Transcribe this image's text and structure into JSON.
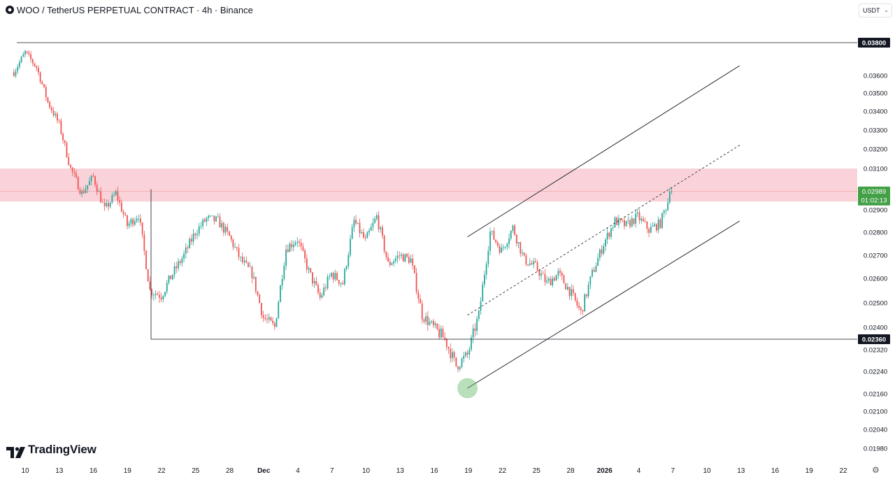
{
  "header": {
    "title": "WOO / TetherUS PERPETUAL CONTRACT · 4h · Binance",
    "currency": "USDT"
  },
  "branding": {
    "name": "TradingView"
  },
  "colors": {
    "up": "#26a69a",
    "down": "#ef5350",
    "zone": "#f8c8cf",
    "price_label": "#43a047"
  },
  "chart_data": {
    "type": "candlestick",
    "title": "WOO / TetherUS PERPETUAL CONTRACT · 4h · Binance",
    "y_ticks": [
      "0.03600",
      "0.03500",
      "0.03400",
      "0.03300",
      "0.03200",
      "0.03100",
      "0.02900",
      "0.02800",
      "0.02700",
      "0.02600",
      "0.02500",
      "0.02400",
      "0.02320",
      "0.02240",
      "0.02160",
      "0.02100",
      "0.02040",
      "0.01980"
    ],
    "x_ticks": [
      "10",
      "13",
      "16",
      "19",
      "22",
      "25",
      "28",
      "Dec",
      "4",
      "7",
      "10",
      "13",
      "16",
      "19",
      "22",
      "25",
      "28",
      "2026",
      "4",
      "7",
      "10",
      "13",
      "16",
      "19",
      "22"
    ],
    "bold_x_ticks": [
      "Dec",
      "2026"
    ],
    "horizontal_levels": [
      {
        "label": "0.03800",
        "value": 0.038
      },
      {
        "label": "0.02360",
        "value": 0.0236
      }
    ],
    "resistance_zone": {
      "from": 0.0294,
      "to": 0.031
    },
    "current_price": {
      "label": "0.02989",
      "countdown": "01:02:13",
      "value": 0.02989
    },
    "channel": {
      "start_date": "Dec 19",
      "end_date": "Jan 12",
      "lower": [
        0.0218,
        0.0285
      ],
      "upper": [
        0.0278,
        0.0366
      ],
      "middle": [
        0.0245,
        0.0322
      ]
    },
    "marked_low": {
      "date": "Dec 19",
      "value": 0.0218
    },
    "close_path": [
      {
        "date": "Nov 9",
        "close": 0.0362
      },
      {
        "date": "Nov 10",
        "close": 0.0374
      },
      {
        "date": "Nov 11",
        "close": 0.0365
      },
      {
        "date": "Nov 12",
        "close": 0.0345
      },
      {
        "date": "Nov 13",
        "close": 0.0333
      },
      {
        "date": "Nov 14",
        "close": 0.031
      },
      {
        "date": "Nov 15",
        "close": 0.0298
      },
      {
        "date": "Nov 16",
        "close": 0.0306
      },
      {
        "date": "Nov 17",
        "close": 0.029
      },
      {
        "date": "Nov 18",
        "close": 0.0298
      },
      {
        "date": "Nov 19",
        "close": 0.0283
      },
      {
        "date": "Nov 20",
        "close": 0.0288
      },
      {
        "date": "Nov 21",
        "close": 0.0255
      },
      {
        "date": "Nov 22",
        "close": 0.0253
      },
      {
        "date": "Nov 23",
        "close": 0.0262
      },
      {
        "date": "Nov 24",
        "close": 0.027
      },
      {
        "date": "Nov 25",
        "close": 0.028
      },
      {
        "date": "Nov 26",
        "close": 0.0286
      },
      {
        "date": "Nov 27",
        "close": 0.0285
      },
      {
        "date": "Nov 28",
        "close": 0.0278
      },
      {
        "date": "Nov 29",
        "close": 0.0268
      },
      {
        "date": "Nov 30",
        "close": 0.0262
      },
      {
        "date": "Dec 1",
        "close": 0.0244
      },
      {
        "date": "Dec 2",
        "close": 0.024
      },
      {
        "date": "Dec 3",
        "close": 0.0273
      },
      {
        "date": "Dec 4",
        "close": 0.0277
      },
      {
        "date": "Dec 5",
        "close": 0.0263
      },
      {
        "date": "Dec 6",
        "close": 0.0252
      },
      {
        "date": "Dec 7",
        "close": 0.0262
      },
      {
        "date": "Dec 8",
        "close": 0.0258
      },
      {
        "date": "Dec 9",
        "close": 0.0285
      },
      {
        "date": "Dec 10",
        "close": 0.0276
      },
      {
        "date": "Dec 11",
        "close": 0.0287
      },
      {
        "date": "Dec 12",
        "close": 0.0266
      },
      {
        "date": "Dec 13",
        "close": 0.027
      },
      {
        "date": "Dec 14",
        "close": 0.0268
      },
      {
        "date": "Dec 15",
        "close": 0.0245
      },
      {
        "date": "Dec 16",
        "close": 0.024
      },
      {
        "date": "Dec 17",
        "close": 0.0236
      },
      {
        "date": "Dec 18",
        "close": 0.0226
      },
      {
        "date": "Dec 19",
        "close": 0.023
      },
      {
        "date": "Dec 20",
        "close": 0.0245
      },
      {
        "date": "Dec 21",
        "close": 0.028
      },
      {
        "date": "Dec 22",
        "close": 0.0272
      },
      {
        "date": "Dec 23",
        "close": 0.0282
      },
      {
        "date": "Dec 24",
        "close": 0.0268
      },
      {
        "date": "Dec 25",
        "close": 0.0265
      },
      {
        "date": "Dec 26",
        "close": 0.0258
      },
      {
        "date": "Dec 27",
        "close": 0.0262
      },
      {
        "date": "Dec 28",
        "close": 0.0255
      },
      {
        "date": "Dec 29",
        "close": 0.0246
      },
      {
        "date": "Dec 30",
        "close": 0.0262
      },
      {
        "date": "Dec 31",
        "close": 0.0275
      },
      {
        "date": "Jan 1",
        "close": 0.0285
      },
      {
        "date": "Jan 2",
        "close": 0.0283
      },
      {
        "date": "Jan 3",
        "close": 0.0287
      },
      {
        "date": "Jan 4",
        "close": 0.0281
      },
      {
        "date": "Jan 5",
        "close": 0.0284
      },
      {
        "date": "Jan 6",
        "close": 0.0299
      }
    ]
  }
}
